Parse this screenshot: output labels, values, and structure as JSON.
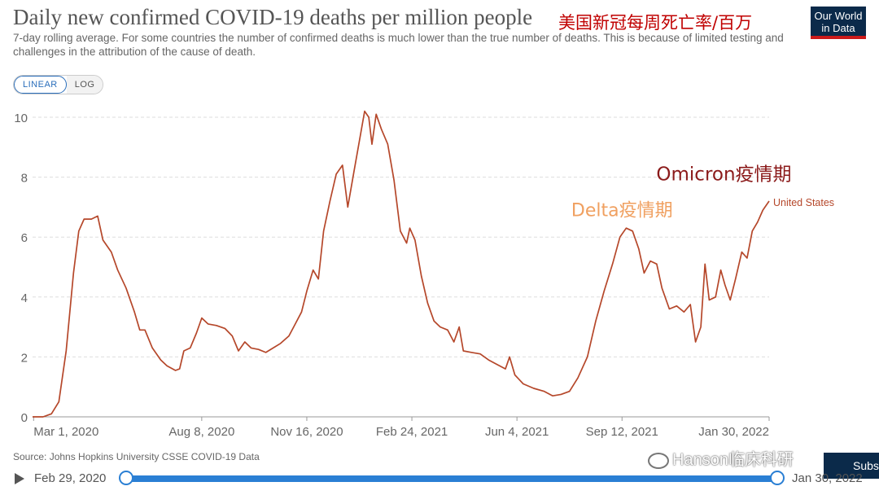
{
  "title": "Daily new confirmed COVID-19 deaths per million people",
  "cn_title": "美国新冠每周死亡率/百万",
  "subtitle": "7-day rolling average. For some countries the number of confirmed deaths is much lower than the true number of deaths. This is because of limited testing and challenges in the attribution of the cause of death.",
  "logo": {
    "line1": "Our World",
    "line2": "in Data"
  },
  "scale_toggle": {
    "linear": "LINEAR",
    "log": "LOG",
    "active": "linear"
  },
  "source": "Source: Johns Hopkins University CSSE COVID-19 Data",
  "watermark": "Hanson临床科研",
  "subscribe_label": "Subs",
  "timeline": {
    "start_label": "Feb 29, 2020",
    "end_label": "Jan 30, 2022"
  },
  "colors": {
    "series": "#b5472a",
    "annotation_delta": "#f0a060",
    "annotation_omicron": "#8b1a1a",
    "accent": "#2a7fd4"
  },
  "chart_data": {
    "type": "line",
    "ylim": [
      0,
      10
    ],
    "yticks": [
      0,
      2,
      4,
      6,
      8,
      10
    ],
    "xlim": [
      "2020-02-29",
      "2022-01-30"
    ],
    "xticks": [
      {
        "date": "2020-03-01",
        "label": "Mar 1, 2020"
      },
      {
        "date": "2020-08-08",
        "label": "Aug 8, 2020"
      },
      {
        "date": "2020-11-16",
        "label": "Nov 16, 2020"
      },
      {
        "date": "2021-02-24",
        "label": "Feb 24, 2021"
      },
      {
        "date": "2021-06-04",
        "label": "Jun 4, 2021"
      },
      {
        "date": "2021-09-12",
        "label": "Sep 12, 2021"
      },
      {
        "date": "2022-01-30",
        "label": "Jan 30, 2022"
      }
    ],
    "grid": true,
    "series": [
      {
        "name": "United States",
        "points": [
          [
            "2020-02-29",
            0
          ],
          [
            "2020-03-10",
            0
          ],
          [
            "2020-03-18",
            0.1
          ],
          [
            "2020-03-25",
            0.5
          ],
          [
            "2020-04-01",
            2.2
          ],
          [
            "2020-04-08",
            4.8
          ],
          [
            "2020-04-13",
            6.2
          ],
          [
            "2020-04-18",
            6.6
          ],
          [
            "2020-04-25",
            6.6
          ],
          [
            "2020-05-01",
            6.7
          ],
          [
            "2020-05-06",
            5.9
          ],
          [
            "2020-05-14",
            5.5
          ],
          [
            "2020-05-20",
            4.9
          ],
          [
            "2020-05-28",
            4.3
          ],
          [
            "2020-06-05",
            3.5
          ],
          [
            "2020-06-10",
            2.9
          ],
          [
            "2020-06-15",
            2.9
          ],
          [
            "2020-06-22",
            2.3
          ],
          [
            "2020-06-30",
            1.9
          ],
          [
            "2020-07-06",
            1.7
          ],
          [
            "2020-07-14",
            1.55
          ],
          [
            "2020-07-18",
            1.6
          ],
          [
            "2020-07-22",
            2.2
          ],
          [
            "2020-07-28",
            2.3
          ],
          [
            "2020-08-03",
            2.8
          ],
          [
            "2020-08-08",
            3.3
          ],
          [
            "2020-08-14",
            3.1
          ],
          [
            "2020-08-22",
            3.05
          ],
          [
            "2020-08-30",
            2.95
          ],
          [
            "2020-09-06",
            2.7
          ],
          [
            "2020-09-12",
            2.2
          ],
          [
            "2020-09-18",
            2.5
          ],
          [
            "2020-09-24",
            2.3
          ],
          [
            "2020-10-01",
            2.25
          ],
          [
            "2020-10-08",
            2.15
          ],
          [
            "2020-10-15",
            2.3
          ],
          [
            "2020-10-22",
            2.45
          ],
          [
            "2020-10-30",
            2.7
          ],
          [
            "2020-11-05",
            3.1
          ],
          [
            "2020-11-11",
            3.5
          ],
          [
            "2020-11-16",
            4.2
          ],
          [
            "2020-11-22",
            4.9
          ],
          [
            "2020-11-27",
            4.6
          ],
          [
            "2020-12-02",
            6.2
          ],
          [
            "2020-12-08",
            7.2
          ],
          [
            "2020-12-14",
            8.1
          ],
          [
            "2020-12-20",
            8.4
          ],
          [
            "2020-12-25",
            7.0
          ],
          [
            "2020-12-31",
            8.2
          ],
          [
            "2021-01-06",
            9.4
          ],
          [
            "2021-01-10",
            10.2
          ],
          [
            "2021-01-14",
            10.0
          ],
          [
            "2021-01-17",
            9.1
          ],
          [
            "2021-01-21",
            10.1
          ],
          [
            "2021-01-26",
            9.6
          ],
          [
            "2021-02-01",
            9.1
          ],
          [
            "2021-02-07",
            7.9
          ],
          [
            "2021-02-13",
            6.2
          ],
          [
            "2021-02-19",
            5.8
          ],
          [
            "2021-02-22",
            6.3
          ],
          [
            "2021-02-27",
            5.9
          ],
          [
            "2021-03-05",
            4.7
          ],
          [
            "2021-03-11",
            3.8
          ],
          [
            "2021-03-17",
            3.2
          ],
          [
            "2021-03-23",
            3.0
          ],
          [
            "2021-03-30",
            2.9
          ],
          [
            "2021-04-05",
            2.5
          ],
          [
            "2021-04-10",
            3.0
          ],
          [
            "2021-04-14",
            2.2
          ],
          [
            "2021-04-22",
            2.15
          ],
          [
            "2021-04-30",
            2.1
          ],
          [
            "2021-05-08",
            1.9
          ],
          [
            "2021-05-16",
            1.75
          ],
          [
            "2021-05-24",
            1.6
          ],
          [
            "2021-05-28",
            2.0
          ],
          [
            "2021-06-02",
            1.4
          ],
          [
            "2021-06-10",
            1.1
          ],
          [
            "2021-06-20",
            0.95
          ],
          [
            "2021-06-30",
            0.85
          ],
          [
            "2021-07-08",
            0.7
          ],
          [
            "2021-07-16",
            0.75
          ],
          [
            "2021-07-24",
            0.85
          ],
          [
            "2021-08-01",
            1.3
          ],
          [
            "2021-08-10",
            2.0
          ],
          [
            "2021-08-18",
            3.2
          ],
          [
            "2021-08-26",
            4.2
          ],
          [
            "2021-09-03",
            5.1
          ],
          [
            "2021-09-10",
            6.0
          ],
          [
            "2021-09-16",
            6.3
          ],
          [
            "2021-09-22",
            6.2
          ],
          [
            "2021-09-28",
            5.6
          ],
          [
            "2021-10-03",
            4.8
          ],
          [
            "2021-10-09",
            5.2
          ],
          [
            "2021-10-15",
            5.1
          ],
          [
            "2021-10-20",
            4.3
          ],
          [
            "2021-10-27",
            3.6
          ],
          [
            "2021-11-03",
            3.7
          ],
          [
            "2021-11-10",
            3.5
          ],
          [
            "2021-11-16",
            3.75
          ],
          [
            "2021-11-21",
            2.5
          ],
          [
            "2021-11-26",
            3.0
          ],
          [
            "2021-11-30",
            5.1
          ],
          [
            "2021-12-04",
            3.9
          ],
          [
            "2021-12-10",
            4.0
          ],
          [
            "2021-12-15",
            4.9
          ],
          [
            "2021-12-19",
            4.4
          ],
          [
            "2021-12-24",
            3.9
          ],
          [
            "2021-12-29",
            4.6
          ],
          [
            "2022-01-04",
            5.5
          ],
          [
            "2022-01-09",
            5.3
          ],
          [
            "2022-01-14",
            6.2
          ],
          [
            "2022-01-19",
            6.5
          ],
          [
            "2022-01-24",
            6.9
          ],
          [
            "2022-01-30",
            7.2
          ]
        ]
      }
    ],
    "end_label": "United States",
    "annotations": [
      {
        "text": "Delta疫情期",
        "date": "2021-09-12",
        "y": 6.7
      },
      {
        "text": "Omicron疫情期",
        "date": "2021-12-18",
        "y": 7.9
      }
    ]
  }
}
